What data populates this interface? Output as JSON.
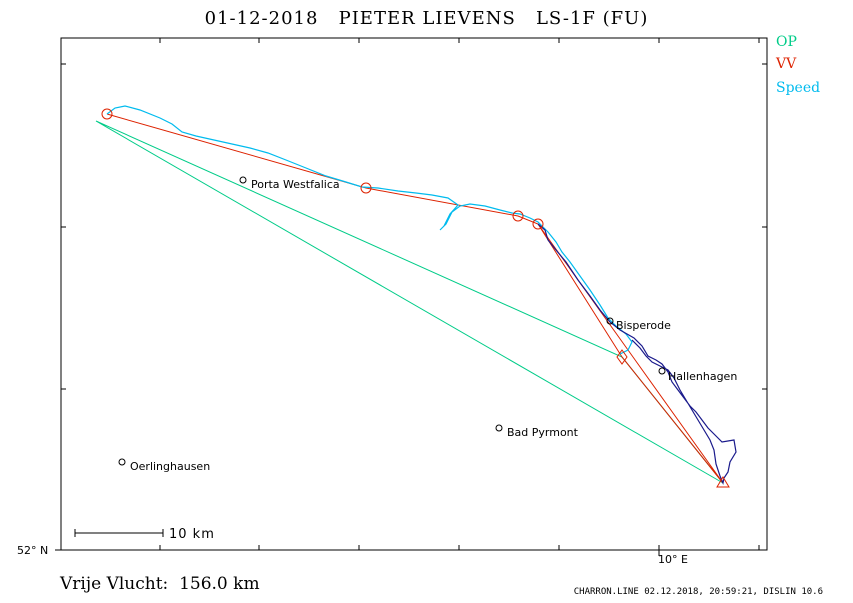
{
  "title": "01-12-2018   PIETER LIEVENS   LS-1F (FU)",
  "legend": {
    "op": {
      "label": "OP",
      "color": "#00cc88"
    },
    "vv": {
      "label": "VV",
      "color": "#dd2200"
    },
    "speed": {
      "label": "Speed",
      "color": "#00bbee"
    }
  },
  "track_color": "#1a1a8c",
  "places": [
    {
      "name": "Porta Westfalica"
    },
    {
      "name": "Bisperode"
    },
    {
      "name": "Hallenhagen"
    },
    {
      "name": "Bad Pyrmont"
    },
    {
      "name": "Oerlinghausen"
    }
  ],
  "axes": {
    "lat_label": "52° N",
    "lon_label": "10° E"
  },
  "scale_bar": {
    "label": "10  km"
  },
  "distance": "Vrije Vlucht:  156.0 km",
  "footer": "CHARRON.LINE 02.12.2018, 20:59:21, DISLIN 10.6"
}
